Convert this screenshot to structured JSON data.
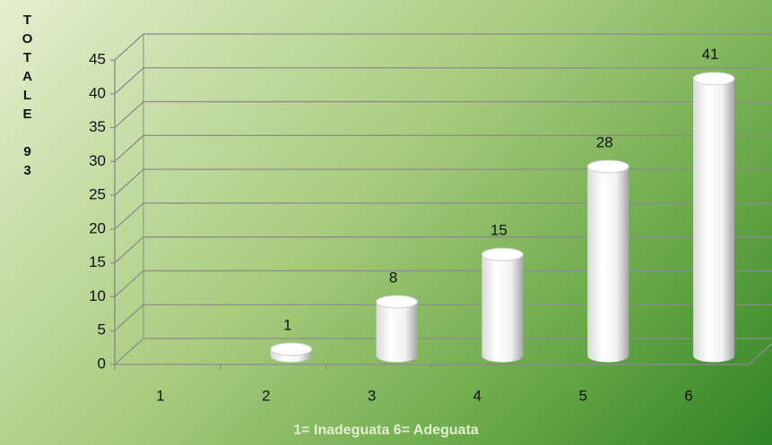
{
  "chart_data": {
    "type": "bar3d",
    "y_label": "TOTALE 93",
    "x_label": "1= Inadeguata 6= Adeguata",
    "categories": [
      "1",
      "2",
      "3",
      "4",
      "5",
      "6"
    ],
    "values": [
      null,
      1,
      8,
      15,
      28,
      41
    ],
    "color": "#ffffff",
    "ylim": [
      0,
      45
    ],
    "yticks": [
      0,
      5,
      10,
      15,
      20,
      25,
      30,
      35,
      40,
      45
    ],
    "grid": true
  }
}
